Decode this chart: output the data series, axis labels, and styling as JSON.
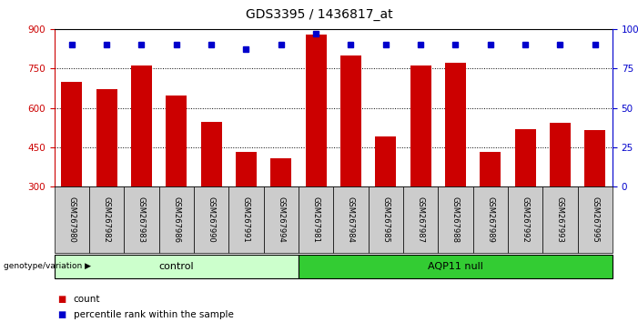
{
  "title": "GDS3395 / 1436817_at",
  "samples": [
    "GSM267980",
    "GSM267982",
    "GSM267983",
    "GSM267986",
    "GSM267990",
    "GSM267991",
    "GSM267994",
    "GSM267981",
    "GSM267984",
    "GSM267985",
    "GSM267987",
    "GSM267988",
    "GSM267989",
    "GSM267992",
    "GSM267993",
    "GSM267995"
  ],
  "counts": [
    700,
    672,
    762,
    648,
    545,
    432,
    408,
    878,
    800,
    490,
    760,
    772,
    432,
    520,
    543,
    515
  ],
  "percentile_ranks": [
    90,
    90,
    90,
    90,
    90,
    87,
    90,
    97,
    90,
    90,
    90,
    90,
    90,
    90,
    90,
    90
  ],
  "groups": [
    {
      "label": "control",
      "start": 0,
      "end": 7,
      "color": "#ccffcc"
    },
    {
      "label": "AQP11 null",
      "start": 7,
      "end": 16,
      "color": "#33cc33"
    }
  ],
  "ylim_left": [
    300,
    900
  ],
  "yticks_left": [
    300,
    450,
    600,
    750,
    900
  ],
  "yticks_right": [
    0,
    25,
    50,
    75,
    100
  ],
  "bar_color": "#cc0000",
  "dot_color": "#0000cc",
  "bar_width": 0.6,
  "background_color": "#ffffff",
  "tick_label_bg": "#cccccc",
  "genotype_label": "genotype/variation",
  "legend_count_label": "count",
  "legend_pct_label": "percentile rank within the sample",
  "title_fontsize": 10,
  "axis_fontsize": 7.5,
  "label_fontsize": 7
}
